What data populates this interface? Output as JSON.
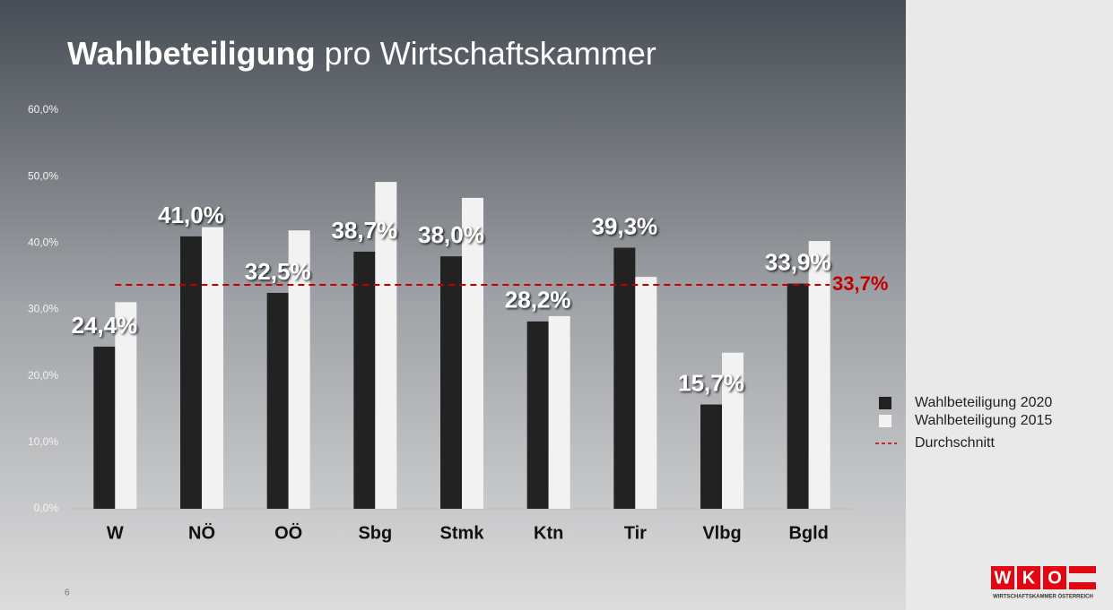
{
  "chart_data": {
    "type": "bar",
    "title": [
      "Wahlbeteiligung",
      "pro Wirtschaftskammer"
    ],
    "categories": [
      "W",
      "NÖ",
      "OÖ",
      "Sbg",
      "Stmk",
      "Ktn",
      "Tir",
      "Vlbg",
      "Bgld"
    ],
    "series": [
      {
        "name": "Wahlbeteiligung 2020",
        "color": "#222222",
        "values": [
          24.4,
          41.0,
          32.5,
          38.7,
          38.0,
          28.2,
          39.3,
          15.7,
          33.9
        ],
        "value_labels": [
          "24,4%",
          "41,0%",
          "32,5%",
          "38,7%",
          "38,0%",
          "28,2%",
          "39,3%",
          "15,7%",
          "33,9%"
        ]
      },
      {
        "name": "Wahlbeteiligung 2015",
        "color": "#f2f2f2",
        "values": [
          31.1,
          42.4,
          41.9,
          49.2,
          46.8,
          29.0,
          34.9,
          23.5,
          40.3
        ]
      }
    ],
    "average": {
      "name": "Durchschnitt",
      "value": 33.7,
      "label": "33,7%",
      "color": "#c00000"
    },
    "ylim": [
      0,
      60
    ],
    "yticks": [
      {
        "value": 0,
        "label": "0,0%"
      },
      {
        "value": 10,
        "label": "10,0%"
      },
      {
        "value": 20,
        "label": "20,0%"
      },
      {
        "value": 30,
        "label": "30,0%"
      },
      {
        "value": 40,
        "label": "40,0%"
      },
      {
        "value": 50,
        "label": "50,0%"
      },
      {
        "value": 60,
        "label": "60,0%"
      }
    ],
    "grid": false
  },
  "page_number": "6",
  "logo": {
    "letters": [
      "W",
      "K",
      "O"
    ],
    "text": "WIRTSCHAFTSKAMMER ÖSTERREICH"
  }
}
